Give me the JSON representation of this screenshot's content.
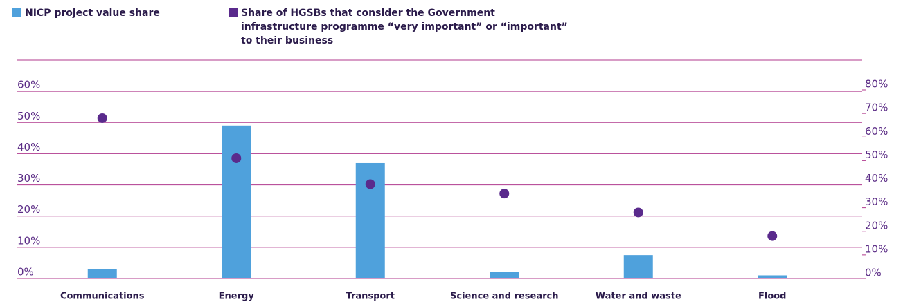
{
  "chart_data": {
    "type": "bar",
    "categories": [
      "Communications",
      "Energy",
      "Transport",
      "Science and research",
      "Water and waste",
      "Flood"
    ],
    "series": [
      {
        "name": "NICP project value share",
        "color": "#4fa1dc",
        "type": "bar",
        "values": [
          3,
          49,
          37,
          2,
          7.5,
          1
        ]
      },
      {
        "name": "Share of HGSBs that consider the Government infrastructure programme “very important” or “important” to their business",
        "color": "#5a2a8c",
        "type": "scatter",
        "axis": "y2",
        "values": [
          68,
          51,
          40,
          36,
          28,
          18
        ]
      }
    ],
    "ylim": [
      0,
      70
    ],
    "yticks": [
      {
        "value": 0,
        "label": "0%"
      },
      {
        "value": 10,
        "label": "10%"
      },
      {
        "value": 20,
        "label": "20%"
      },
      {
        "value": 30,
        "label": "30%"
      },
      {
        "value": 40,
        "label": "40%"
      },
      {
        "value": 50,
        "label": "50%"
      },
      {
        "value": 60,
        "label": "60%"
      }
    ],
    "y2lim": [
      0,
      80
    ],
    "y2ticks": [
      {
        "value": 0,
        "label": "0%"
      },
      {
        "value": 10,
        "label": "10%"
      },
      {
        "value": 20,
        "label": "20%"
      },
      {
        "value": 30,
        "label": "30%"
      },
      {
        "value": 40,
        "label": "40%"
      },
      {
        "value": 50,
        "label": "50%"
      },
      {
        "value": 60,
        "label": "60%"
      },
      {
        "value": 70,
        "label": "70%"
      },
      {
        "value": 80,
        "label": "80%"
      }
    ],
    "grid": true
  }
}
